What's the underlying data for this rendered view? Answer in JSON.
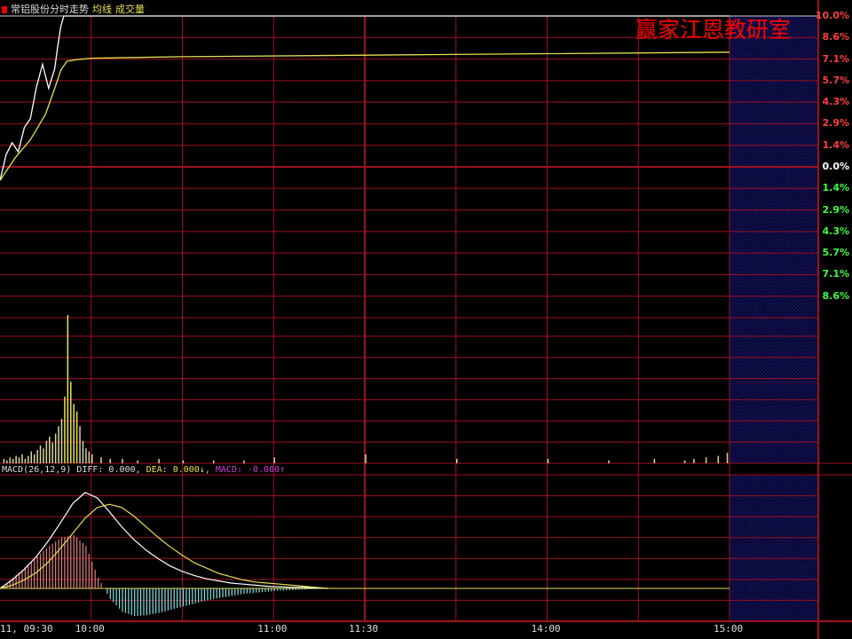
{
  "header": {
    "title": "常铝股份分时走势",
    "avg_label": "均线",
    "vol_label": "成交量"
  },
  "watermark": "赢家江恩教研室",
  "macd_header": {
    "name": "MACD(26,12,9)",
    "diff": "DIFF: 0.000,",
    "dea": "DEA: 0.000↓,",
    "macd": "MACD: -0.000↑"
  },
  "colors": {
    "grid": "#a01020",
    "up": "#ff4040",
    "down": "#40ff40",
    "price": "#ffffff",
    "avg": "#e8e050",
    "hatch": "#101060",
    "hist_pos": "#e08080",
    "hist_neg": "#80e0e0"
  },
  "chart_data": [
    {
      "type": "line",
      "panel": "price",
      "y_tick_labels_up": [
        "10.0%",
        "8.6%",
        "7.1%",
        "5.7%",
        "4.3%",
        "2.9%",
        "1.4%"
      ],
      "y_tick_zero": "0.0%",
      "y_tick_labels_down": [
        "1.4%",
        "2.9%",
        "4.3%",
        "5.7%",
        "7.1%",
        "8.6%"
      ],
      "ylim": [
        -10,
        10
      ],
      "x_tick_labels": [
        "11, 09:30",
        "10:00",
        "11:00",
        "11:30",
        "14:00",
        "15:00"
      ],
      "x_tick_minutes": [
        0,
        30,
        90,
        120,
        180,
        240
      ],
      "series": [
        {
          "name": "price",
          "minutes": [
            0,
            2,
            4,
            6,
            8,
            10,
            12,
            14,
            16,
            18,
            19,
            20,
            21,
            22,
            240
          ],
          "values": [
            -0.9,
            0.8,
            1.6,
            1.0,
            2.6,
            3.2,
            5.3,
            6.8,
            5.2,
            6.5,
            8.0,
            9.3,
            10.0,
            10.0,
            10.0
          ]
        },
        {
          "name": "均线",
          "minutes": [
            0,
            5,
            10,
            15,
            18,
            20,
            22,
            25,
            30,
            60,
            120,
            180,
            240
          ],
          "values": [
            -0.9,
            0.6,
            1.8,
            3.5,
            5.2,
            6.4,
            7.0,
            7.1,
            7.2,
            7.3,
            7.4,
            7.5,
            7.6
          ]
        }
      ]
    },
    {
      "type": "bar",
      "panel": "volume",
      "minutes": [
        1,
        2,
        3,
        4,
        5,
        6,
        7,
        8,
        9,
        10,
        11,
        12,
        13,
        14,
        15,
        16,
        17,
        18,
        19,
        20,
        21,
        22,
        23,
        24,
        25,
        26,
        27,
        28,
        29,
        30,
        33,
        36,
        40,
        45,
        52,
        60,
        70,
        80,
        90,
        120,
        150,
        180,
        200,
        215,
        225,
        228,
        232,
        236,
        239
      ],
      "values": [
        3,
        2,
        4,
        3,
        5,
        4,
        6,
        3,
        5,
        8,
        6,
        9,
        12,
        10,
        15,
        18,
        14,
        20,
        25,
        30,
        45,
        100,
        55,
        40,
        35,
        25,
        15,
        10,
        8,
        6,
        4,
        3,
        3,
        2,
        3,
        2,
        2,
        2,
        4,
        6,
        3,
        3,
        2,
        3,
        2,
        3,
        4,
        5,
        7
      ]
    },
    {
      "type": "bar+line",
      "panel": "macd",
      "minutes": [
        0,
        4,
        8,
        12,
        16,
        20,
        24,
        28,
        32,
        36,
        40,
        44,
        48,
        52,
        56,
        60,
        64,
        68,
        72,
        76,
        80,
        84,
        88,
        92,
        96,
        100,
        104,
        108
      ],
      "diff": [
        0,
        0.08,
        0.18,
        0.3,
        0.45,
        0.62,
        0.8,
        0.9,
        0.85,
        0.72,
        0.58,
        0.46,
        0.36,
        0.28,
        0.21,
        0.16,
        0.12,
        0.09,
        0.07,
        0.05,
        0.04,
        0.03,
        0.02,
        0.015,
        0.01,
        0.01,
        0.005,
        0
      ],
      "dea": [
        0,
        0.03,
        0.08,
        0.15,
        0.25,
        0.38,
        0.52,
        0.66,
        0.76,
        0.79,
        0.76,
        0.68,
        0.58,
        0.48,
        0.39,
        0.31,
        0.24,
        0.19,
        0.14,
        0.11,
        0.08,
        0.06,
        0.05,
        0.04,
        0.03,
        0.02,
        0.01,
        0
      ],
      "macd": [
        0,
        0.1,
        0.2,
        0.3,
        0.4,
        0.48,
        0.5,
        0.4,
        0.1,
        -0.1,
        -0.22,
        -0.26,
        -0.25,
        -0.23,
        -0.2,
        -0.17,
        -0.14,
        -0.11,
        -0.09,
        -0.07,
        -0.05,
        -0.04,
        -0.03,
        -0.02,
        -0.015,
        -0.01,
        -0.005,
        0
      ]
    }
  ]
}
